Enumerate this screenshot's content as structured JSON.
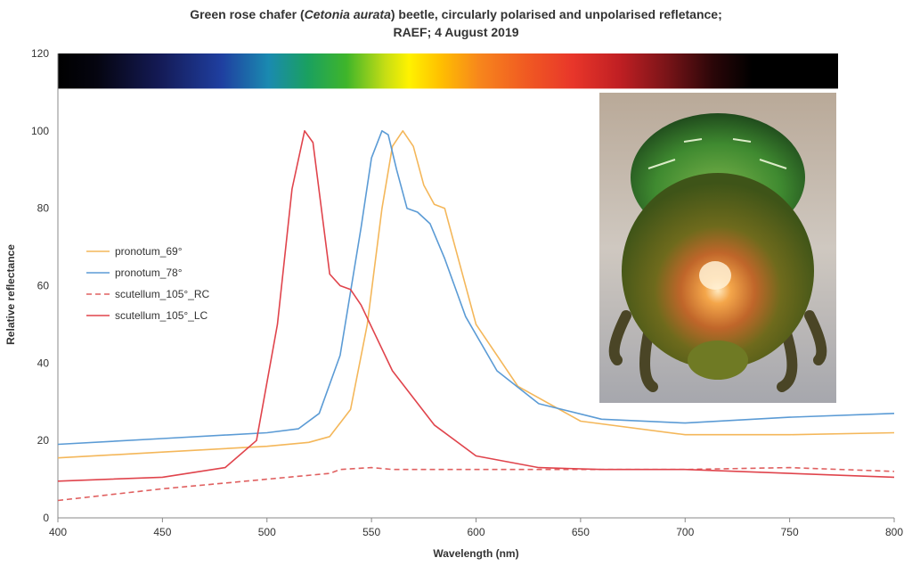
{
  "title": {
    "line1_pre": "Green rose chafer (",
    "line1_species": "Cetonia aurata",
    "line1_post": ") beetle, circularly polarised and unpolarised refletance;",
    "line2": "RAEF; 4 August 2019"
  },
  "photo": {
    "description": "green rose chafer beetle, rear view"
  },
  "chart_data": {
    "type": "line",
    "xlabel": "Wavelength (nm)",
    "ylabel": "Relative reflectance",
    "xlim": [
      400,
      800
    ],
    "ylim": [
      0,
      120
    ],
    "xticks": [
      400,
      450,
      500,
      550,
      600,
      650,
      700,
      750,
      800
    ],
    "yticks": [
      0,
      20,
      40,
      60,
      80,
      100,
      120
    ],
    "grid": false,
    "spectrum_band": {
      "y_range": [
        110,
        120
      ],
      "x_range": [
        400,
        800
      ]
    },
    "legend_position": "left-middle",
    "series": [
      {
        "name": "pronotum_69°",
        "color": "#f4b75a",
        "dash": false,
        "x": [
          400,
          450,
          500,
          520,
          530,
          540,
          548,
          555,
          560,
          565,
          570,
          575,
          580,
          585,
          590,
          600,
          620,
          650,
          700,
          750,
          800
        ],
        "y": [
          15.5,
          17,
          18.5,
          19.5,
          21,
          28,
          50,
          80,
          96,
          100,
          96,
          86,
          81,
          80,
          70,
          50,
          34,
          25,
          21.5,
          21.5,
          22
        ]
      },
      {
        "name": "pronotum_78°",
        "color": "#5b9bd5",
        "dash": false,
        "x": [
          400,
          450,
          500,
          515,
          525,
          535,
          545,
          550,
          555,
          558,
          562,
          567,
          572,
          578,
          585,
          595,
          610,
          630,
          660,
          700,
          750,
          800
        ],
        "y": [
          19,
          20.5,
          22,
          23,
          27,
          42,
          75,
          93,
          100,
          99,
          90,
          80,
          79,
          76,
          67,
          52,
          38,
          29.5,
          25.5,
          24.5,
          26,
          27
        ]
      },
      {
        "name": "scutellum_105°_RC",
        "color": "#e06060",
        "dash": true,
        "x": [
          400,
          450,
          500,
          530,
          535,
          550,
          560,
          600,
          650,
          700,
          750,
          800
        ],
        "y": [
          4.5,
          7.5,
          10,
          11.5,
          12.5,
          13,
          12.5,
          12.5,
          12.5,
          12.5,
          13,
          12
        ]
      },
      {
        "name": "scutellum_105°_LC",
        "color": "#e0444c",
        "dash": false,
        "x": [
          400,
          450,
          480,
          495,
          505,
          512,
          518,
          522,
          526,
          530,
          535,
          540,
          545,
          560,
          580,
          600,
          630,
          660,
          700,
          750,
          800
        ],
        "y": [
          9.5,
          10.5,
          13,
          20,
          50,
          85,
          100,
          97,
          80,
          63,
          60,
          59,
          55,
          38,
          24,
          16,
          13,
          12.5,
          12.5,
          11.5,
          10.5
        ]
      }
    ]
  }
}
